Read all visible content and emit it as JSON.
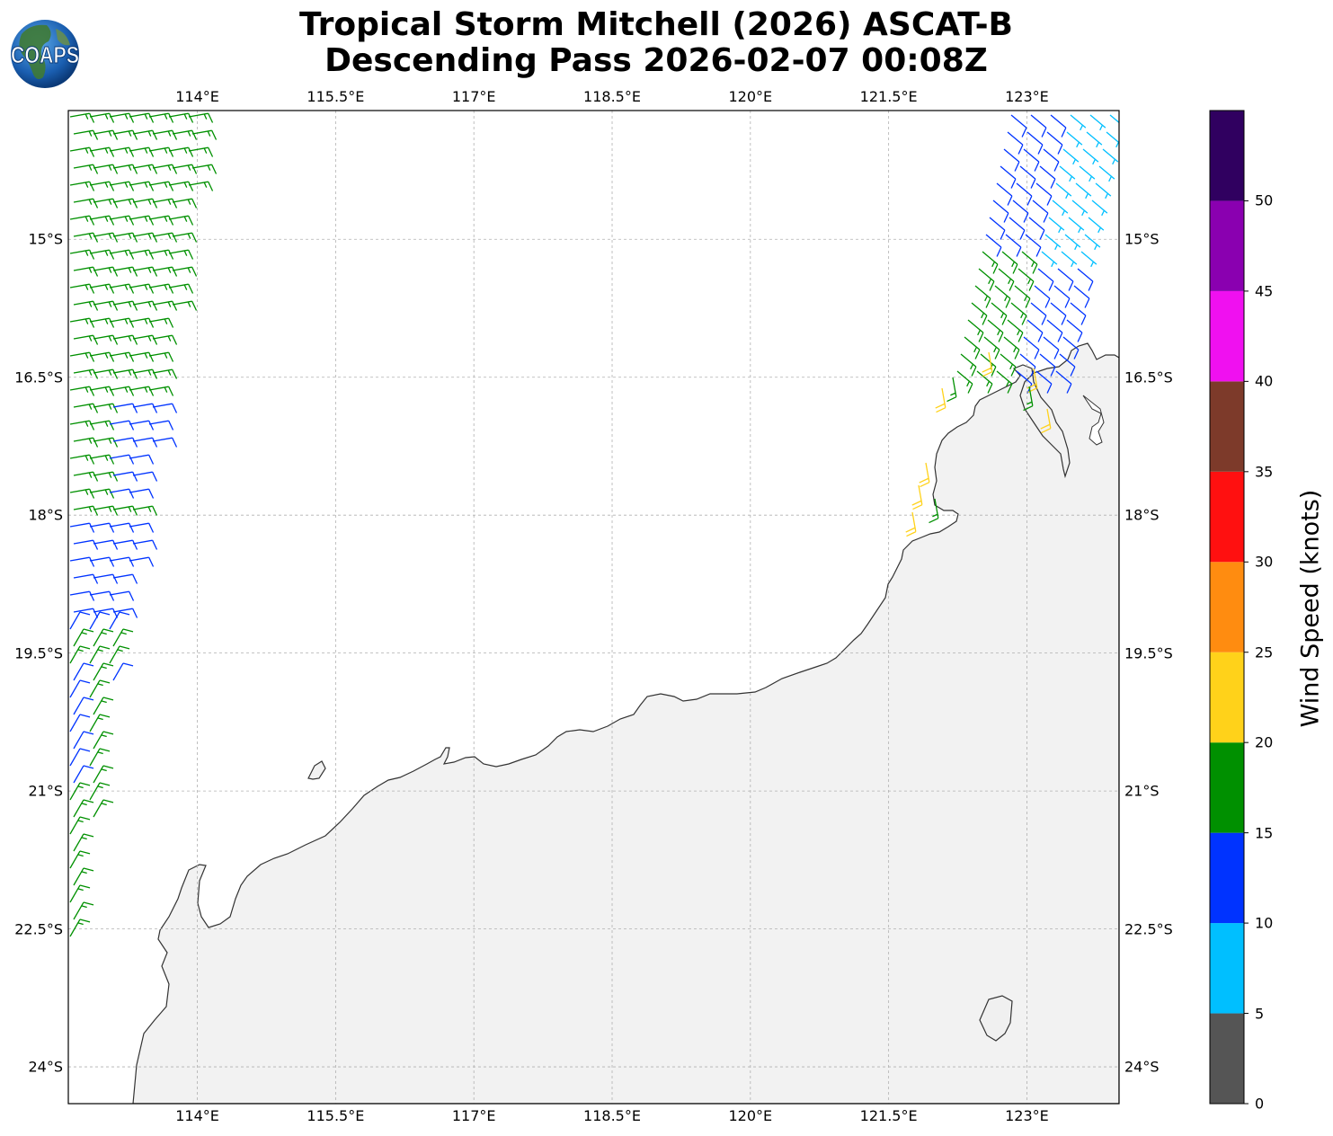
{
  "title": {
    "line1": "Tropical Storm Mitchell (2026) ASCAT-B",
    "line2": "Descending Pass 2026-02-07 00:08Z"
  },
  "logo": {
    "text": "COAPS",
    "icon": "globe-icon"
  },
  "map": {
    "lon_range": [
      112.6,
      124.0
    ],
    "lat_range": [
      -24.4,
      -13.6
    ],
    "lon_ticks": [
      {
        "value": 114.0,
        "label": "114°E"
      },
      {
        "value": 115.5,
        "label": "115.5°E"
      },
      {
        "value": 117.0,
        "label": "117°E"
      },
      {
        "value": 118.5,
        "label": "118.5°E"
      },
      {
        "value": 120.0,
        "label": "120°E"
      },
      {
        "value": 121.5,
        "label": "121.5°E"
      },
      {
        "value": 123.0,
        "label": "123°E"
      }
    ],
    "lat_ticks": [
      {
        "value": -15.0,
        "label": "15°S"
      },
      {
        "value": -16.5,
        "label": "16.5°S"
      },
      {
        "value": -18.0,
        "label": "18°S"
      },
      {
        "value": -19.5,
        "label": "19.5°S"
      },
      {
        "value": -21.0,
        "label": "21°S"
      },
      {
        "value": -22.5,
        "label": "22.5°S"
      },
      {
        "value": -24.0,
        "label": "24°S"
      }
    ],
    "gridlines": true,
    "coastline_color": "#333333"
  },
  "colorbar": {
    "title": "Wind Speed (knots)",
    "bins": [
      {
        "from": 0,
        "to": 5,
        "color": "#555555"
      },
      {
        "from": 5,
        "to": 10,
        "color": "#00bfff"
      },
      {
        "from": 10,
        "to": 15,
        "color": "#0033ff"
      },
      {
        "from": 15,
        "to": 20,
        "color": "#009000"
      },
      {
        "from": 20,
        "to": 25,
        "color": "#ffd21a"
      },
      {
        "from": 25,
        "to": 30,
        "color": "#ff8c10"
      },
      {
        "from": 30,
        "to": 35,
        "color": "#ff1010"
      },
      {
        "from": 35,
        "to": 40,
        "color": "#7d3a2a"
      },
      {
        "from": 40,
        "to": 45,
        "color": "#f010f0"
      },
      {
        "from": 45,
        "to": 50,
        "color": "#8a00b0"
      },
      {
        "from": 50,
        "to": 55,
        "color": "#300060"
      }
    ],
    "tick_labels": [
      "0",
      "5",
      "10",
      "15",
      "20",
      "25",
      "30",
      "35",
      "40",
      "45",
      "50"
    ]
  }
}
